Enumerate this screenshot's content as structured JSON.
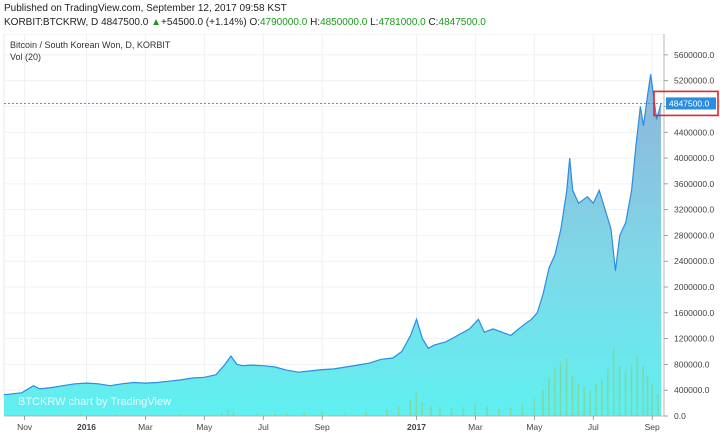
{
  "header": {
    "published": "Published on TradingView.com, September 12, 2017 09:58 KST",
    "symbol": "KORBIT:BTCKRW, D",
    "last": "4847500.0",
    "change_arrow": "▲",
    "change": "+54500.0 (+1.14%)",
    "open_label": "O:",
    "open": "4790000.0",
    "high_label": "H:",
    "high": "4850000.0",
    "low_label": "L:",
    "low": "4781000.0",
    "close_label": "C:",
    "close": "4847500.0"
  },
  "legend": {
    "title": "Bitcoin / South Korean Won, D, KORBIT",
    "volume": "Vol (20)"
  },
  "watermark": "BTCKRW chart by TradingView",
  "colors": {
    "line": "#2a8de0",
    "area_top": "#8fb3d9",
    "area_bottom": "#5ff0f0",
    "volume": "#7fd6a0",
    "price_tag": "#2a8de0",
    "highlight_box": "#e0262b",
    "grid": "#eef1f5"
  },
  "chart_data": {
    "type": "area",
    "price_label": "4847500.0",
    "y_ticks": [
      "5600000.0",
      "5200000.0",
      "4800000.0",
      "4400000.0",
      "4000000.0",
      "3600000.0",
      "3200000.0",
      "2800000.0",
      "2400000.0",
      "2000000.0",
      "1600000.0",
      "1200000.0",
      "800000.0",
      "400000.0",
      "0.0"
    ],
    "y_tick_values": [
      5600000,
      5200000,
      4800000,
      4400000,
      4000000,
      3600000,
      3200000,
      2800000,
      2400000,
      2000000,
      1600000,
      1200000,
      800000,
      400000,
      0
    ],
    "ylim": [
      0,
      5800000
    ],
    "x_ticks": [
      {
        "label": "Nov",
        "idx": 0.7,
        "bold": false
      },
      {
        "label": "2016",
        "idx": 2.8,
        "bold": true
      },
      {
        "label": "Mar",
        "idx": 4.8,
        "bold": false
      },
      {
        "label": "May",
        "idx": 6.8,
        "bold": false
      },
      {
        "label": "Jul",
        "idx": 8.8,
        "bold": false
      },
      {
        "label": "Sep",
        "idx": 10.8,
        "bold": false
      },
      {
        "label": "2017",
        "idx": 14.0,
        "bold": true
      },
      {
        "label": "Mar",
        "idx": 16.0,
        "bold": false
      },
      {
        "label": "May",
        "idx": 18.0,
        "bold": false
      },
      {
        "label": "Jul",
        "idx": 20.0,
        "bold": false
      },
      {
        "label": "Sep",
        "idx": 22.0,
        "bold": false
      }
    ],
    "xlim": [
      0,
      22.4
    ],
    "series": [
      {
        "points": [
          [
            0,
            330000
          ],
          [
            0.6,
            360000
          ],
          [
            1.0,
            470000
          ],
          [
            1.2,
            420000
          ],
          [
            1.6,
            440000
          ],
          [
            2.0,
            470000
          ],
          [
            2.4,
            500000
          ],
          [
            2.8,
            510000
          ],
          [
            3.2,
            500000
          ],
          [
            3.6,
            470000
          ],
          [
            4.0,
            500000
          ],
          [
            4.4,
            520000
          ],
          [
            4.8,
            510000
          ],
          [
            5.2,
            520000
          ],
          [
            5.6,
            540000
          ],
          [
            6.0,
            560000
          ],
          [
            6.4,
            590000
          ],
          [
            6.8,
            600000
          ],
          [
            7.2,
            640000
          ],
          [
            7.5,
            800000
          ],
          [
            7.7,
            930000
          ],
          [
            7.9,
            800000
          ],
          [
            8.1,
            780000
          ],
          [
            8.4,
            790000
          ],
          [
            8.8,
            780000
          ],
          [
            9.2,
            760000
          ],
          [
            9.6,
            710000
          ],
          [
            10.0,
            680000
          ],
          [
            10.4,
            700000
          ],
          [
            10.8,
            720000
          ],
          [
            11.2,
            730000
          ],
          [
            11.6,
            760000
          ],
          [
            12.0,
            790000
          ],
          [
            12.4,
            820000
          ],
          [
            12.8,
            880000
          ],
          [
            13.2,
            900000
          ],
          [
            13.5,
            1000000
          ],
          [
            13.8,
            1250000
          ],
          [
            14.0,
            1500000
          ],
          [
            14.2,
            1200000
          ],
          [
            14.4,
            1050000
          ],
          [
            14.6,
            1100000
          ],
          [
            15.0,
            1150000
          ],
          [
            15.4,
            1250000
          ],
          [
            15.8,
            1350000
          ],
          [
            16.1,
            1500000
          ],
          [
            16.3,
            1300000
          ],
          [
            16.6,
            1350000
          ],
          [
            16.9,
            1300000
          ],
          [
            17.2,
            1250000
          ],
          [
            17.6,
            1400000
          ],
          [
            17.9,
            1500000
          ],
          [
            18.1,
            1600000
          ],
          [
            18.3,
            1900000
          ],
          [
            18.5,
            2300000
          ],
          [
            18.7,
            2500000
          ],
          [
            18.9,
            2900000
          ],
          [
            19.1,
            3500000
          ],
          [
            19.2,
            4000000
          ],
          [
            19.3,
            3500000
          ],
          [
            19.5,
            3300000
          ],
          [
            19.8,
            3400000
          ],
          [
            20.0,
            3300000
          ],
          [
            20.2,
            3500000
          ],
          [
            20.4,
            3200000
          ],
          [
            20.6,
            2900000
          ],
          [
            20.75,
            2250000
          ],
          [
            20.9,
            2800000
          ],
          [
            21.1,
            3000000
          ],
          [
            21.3,
            3500000
          ],
          [
            21.45,
            4200000
          ],
          [
            21.6,
            4800000
          ],
          [
            21.7,
            4500000
          ],
          [
            21.85,
            5000000
          ],
          [
            21.95,
            5300000
          ],
          [
            22.05,
            4950000
          ],
          [
            22.15,
            4600000
          ],
          [
            22.3,
            4847500
          ]
        ]
      }
    ],
    "volume_bars": [
      [
        2.6,
        40000
      ],
      [
        3.8,
        30000
      ],
      [
        5.0,
        25000
      ],
      [
        6.0,
        35000
      ],
      [
        7.4,
        60000
      ],
      [
        7.6,
        120000
      ],
      [
        7.8,
        80000
      ],
      [
        8.6,
        50000
      ],
      [
        9.2,
        40000
      ],
      [
        9.6,
        60000
      ],
      [
        10.2,
        70000
      ],
      [
        10.8,
        90000
      ],
      [
        11.6,
        60000
      ],
      [
        12.3,
        80000
      ],
      [
        13.0,
        120000
      ],
      [
        13.4,
        180000
      ],
      [
        13.8,
        300000
      ],
      [
        14.0,
        450000
      ],
      [
        14.2,
        260000
      ],
      [
        14.5,
        200000
      ],
      [
        14.8,
        180000
      ],
      [
        15.2,
        150000
      ],
      [
        15.6,
        170000
      ],
      [
        16.0,
        240000
      ],
      [
        16.4,
        180000
      ],
      [
        16.8,
        140000
      ],
      [
        17.2,
        160000
      ],
      [
        17.6,
        220000
      ],
      [
        18.0,
        330000
      ],
      [
        18.3,
        500000
      ],
      [
        18.5,
        720000
      ],
      [
        18.7,
        900000
      ],
      [
        18.9,
        1000000
      ],
      [
        19.1,
        1100000
      ],
      [
        19.3,
        780000
      ],
      [
        19.5,
        620000
      ],
      [
        19.7,
        560000
      ],
      [
        19.9,
        480000
      ],
      [
        20.1,
        620000
      ],
      [
        20.3,
        700000
      ],
      [
        20.5,
        900000
      ],
      [
        20.7,
        1300000
      ],
      [
        20.9,
        950000
      ],
      [
        21.1,
        860000
      ],
      [
        21.3,
        980000
      ],
      [
        21.5,
        1150000
      ],
      [
        21.7,
        950000
      ],
      [
        21.85,
        780000
      ],
      [
        22.0,
        600000
      ],
      [
        22.2,
        420000
      ]
    ]
  }
}
